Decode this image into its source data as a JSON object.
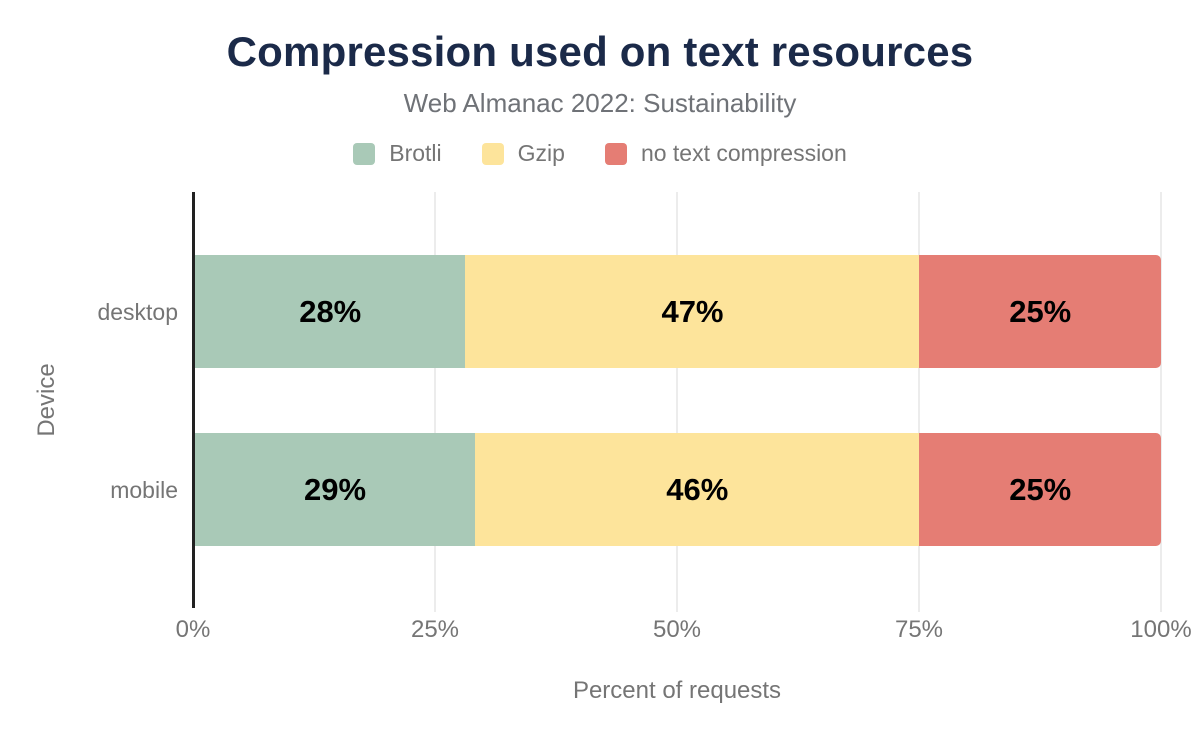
{
  "header": {
    "title": "Compression used on text resources",
    "subtitle": "Web Almanac 2022: Sustainability"
  },
  "chart_data": {
    "type": "bar",
    "variant": "horizontal-stacked",
    "title": "Compression used on text resources",
    "subtitle": "Web Almanac 2022: Sustainability",
    "categories": [
      "desktop",
      "mobile"
    ],
    "series": [
      {
        "name": "Brotli",
        "color": "#a9c9b7",
        "values": [
          28,
          29
        ]
      },
      {
        "name": "Gzip",
        "color": "#fde49b",
        "values": [
          47,
          46
        ]
      },
      {
        "name": "no text compression",
        "color": "#e57d74",
        "values": [
          25,
          25
        ]
      }
    ],
    "value_suffix": "%",
    "xlabel": "Percent of requests",
    "ylabel": "Device",
    "xlim": [
      0,
      100
    ],
    "x_ticks": [
      "0%",
      "25%",
      "50%",
      "75%",
      "100%"
    ],
    "grid": "vertical-gridlines-on",
    "legend_position": "top"
  },
  "colors": {
    "title_text": "#1b2a49",
    "muted_text": "#757575",
    "axis_line": "#212121",
    "gridline": "#ececec",
    "bar_value_text": "#000000",
    "background": "#ffffff"
  }
}
